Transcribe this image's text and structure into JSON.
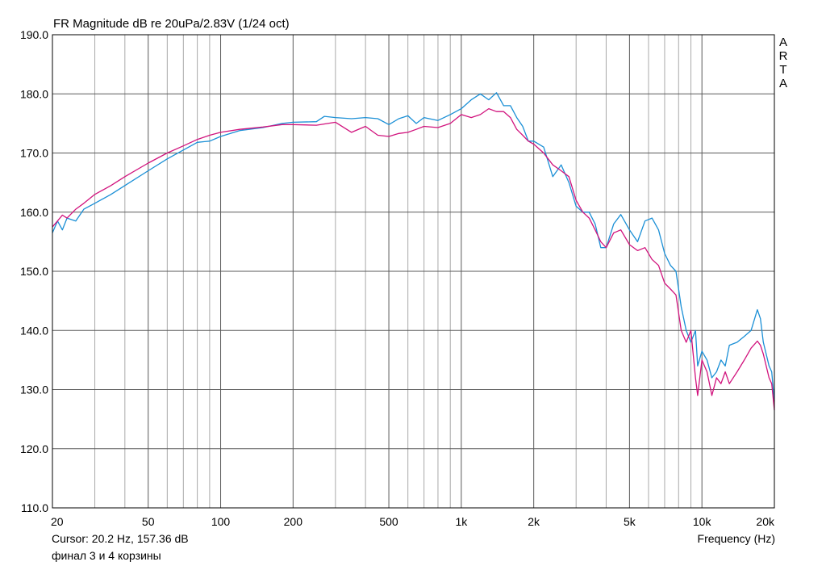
{
  "chart_data": {
    "type": "line",
    "title": "FR Magnitude dB re 20uPa/2.83V (1/24 oct)",
    "xlabel": "Frequency (Hz)",
    "ylabel": "",
    "x_scale": "log",
    "xlim": [
      20,
      20000
    ],
    "ylim": [
      110,
      190
    ],
    "grid": true,
    "y_ticks": [
      "110.0",
      "120.0",
      "130.0",
      "140.0",
      "150.0",
      "160.0",
      "170.0",
      "180.0",
      "190.0"
    ],
    "x_ticks": [
      {
        "value": 20,
        "label": "20"
      },
      {
        "value": 50,
        "label": "50"
      },
      {
        "value": 100,
        "label": "100"
      },
      {
        "value": 200,
        "label": "200"
      },
      {
        "value": 500,
        "label": "500"
      },
      {
        "value": 1000,
        "label": "1k"
      },
      {
        "value": 2000,
        "label": "2k"
      },
      {
        "value": 5000,
        "label": "5k"
      },
      {
        "value": 10000,
        "label": "10k"
      },
      {
        "value": 20000,
        "label": "20k"
      }
    ],
    "series": [
      {
        "color": "#1a8fd6",
        "points": [
          [
            20,
            156.5
          ],
          [
            21,
            158.5
          ],
          [
            22,
            157
          ],
          [
            23,
            159
          ],
          [
            25,
            158.5
          ],
          [
            27,
            160.5
          ],
          [
            30,
            161.5
          ],
          [
            35,
            163
          ],
          [
            40,
            164.5
          ],
          [
            50,
            167
          ],
          [
            60,
            169
          ],
          [
            70,
            170.5
          ],
          [
            80,
            171.8
          ],
          [
            90,
            172
          ],
          [
            100,
            172.8
          ],
          [
            120,
            173.8
          ],
          [
            150,
            174.3
          ],
          [
            180,
            175
          ],
          [
            200,
            175.2
          ],
          [
            250,
            175.3
          ],
          [
            270,
            176.2
          ],
          [
            300,
            176
          ],
          [
            350,
            175.8
          ],
          [
            400,
            176
          ],
          [
            450,
            175.8
          ],
          [
            500,
            174.8
          ],
          [
            550,
            175.8
          ],
          [
            600,
            176.3
          ],
          [
            650,
            175
          ],
          [
            700,
            176
          ],
          [
            800,
            175.5
          ],
          [
            900,
            176.5
          ],
          [
            1000,
            177.5
          ],
          [
            1100,
            179
          ],
          [
            1200,
            180
          ],
          [
            1300,
            179
          ],
          [
            1400,
            180.2
          ],
          [
            1500,
            178
          ],
          [
            1600,
            178
          ],
          [
            1700,
            176
          ],
          [
            1800,
            174.5
          ],
          [
            1900,
            172
          ],
          [
            2000,
            172
          ],
          [
            2200,
            171
          ],
          [
            2400,
            166
          ],
          [
            2600,
            168
          ],
          [
            2800,
            165
          ],
          [
            3000,
            161
          ],
          [
            3200,
            160
          ],
          [
            3400,
            160
          ],
          [
            3600,
            158
          ],
          [
            3800,
            154
          ],
          [
            4000,
            154
          ],
          [
            4300,
            158
          ],
          [
            4600,
            159.6
          ],
          [
            5000,
            157
          ],
          [
            5400,
            155
          ],
          [
            5800,
            158.5
          ],
          [
            6200,
            159
          ],
          [
            6600,
            157
          ],
          [
            7000,
            153
          ],
          [
            7400,
            151
          ],
          [
            7800,
            150
          ],
          [
            8200,
            144
          ],
          [
            8600,
            140
          ],
          [
            9000,
            138
          ],
          [
            9400,
            140
          ],
          [
            9600,
            134
          ],
          [
            10000,
            136.5
          ],
          [
            10500,
            135
          ],
          [
            11000,
            132
          ],
          [
            11500,
            133
          ],
          [
            12000,
            135
          ],
          [
            12500,
            134
          ],
          [
            13000,
            137.5
          ],
          [
            14000,
            138
          ],
          [
            15000,
            139
          ],
          [
            16000,
            140
          ],
          [
            17000,
            143.5
          ],
          [
            17500,
            142
          ],
          [
            18000,
            138
          ],
          [
            19000,
            134
          ],
          [
            19500,
            133
          ],
          [
            20000,
            128
          ]
        ]
      },
      {
        "color": "#d1137d",
        "points": [
          [
            20,
            157.5
          ],
          [
            21,
            158.5
          ],
          [
            22,
            159.5
          ],
          [
            23,
            159
          ],
          [
            25,
            160.5
          ],
          [
            27,
            161.5
          ],
          [
            30,
            163
          ],
          [
            35,
            164.5
          ],
          [
            40,
            166
          ],
          [
            50,
            168.3
          ],
          [
            60,
            170
          ],
          [
            70,
            171.2
          ],
          [
            80,
            172.3
          ],
          [
            90,
            173
          ],
          [
            100,
            173.5
          ],
          [
            120,
            174
          ],
          [
            150,
            174.4
          ],
          [
            180,
            174.8
          ],
          [
            200,
            174.8
          ],
          [
            250,
            174.7
          ],
          [
            300,
            175.2
          ],
          [
            350,
            173.5
          ],
          [
            400,
            174.5
          ],
          [
            450,
            173
          ],
          [
            500,
            172.8
          ],
          [
            550,
            173.3
          ],
          [
            600,
            173.5
          ],
          [
            650,
            174
          ],
          [
            700,
            174.5
          ],
          [
            800,
            174.3
          ],
          [
            900,
            175
          ],
          [
            1000,
            176.5
          ],
          [
            1100,
            176
          ],
          [
            1200,
            176.5
          ],
          [
            1300,
            177.5
          ],
          [
            1400,
            177
          ],
          [
            1500,
            177
          ],
          [
            1600,
            176
          ],
          [
            1700,
            174
          ],
          [
            1800,
            173
          ],
          [
            1900,
            172
          ],
          [
            2000,
            171.5
          ],
          [
            2200,
            170
          ],
          [
            2400,
            168
          ],
          [
            2600,
            167
          ],
          [
            2800,
            166
          ],
          [
            3000,
            162
          ],
          [
            3200,
            160
          ],
          [
            3400,
            159
          ],
          [
            3600,
            157
          ],
          [
            3800,
            155
          ],
          [
            4000,
            154
          ],
          [
            4300,
            156.5
          ],
          [
            4600,
            157
          ],
          [
            5000,
            154.5
          ],
          [
            5400,
            153.5
          ],
          [
            5800,
            154
          ],
          [
            6200,
            152
          ],
          [
            6600,
            151
          ],
          [
            7000,
            148
          ],
          [
            7400,
            147
          ],
          [
            7800,
            146
          ],
          [
            8200,
            140
          ],
          [
            8600,
            138
          ],
          [
            9000,
            140
          ],
          [
            9400,
            132
          ],
          [
            9600,
            129
          ],
          [
            10000,
            135
          ],
          [
            10500,
            133
          ],
          [
            11000,
            129
          ],
          [
            11500,
            132
          ],
          [
            12000,
            131
          ],
          [
            12500,
            133
          ],
          [
            13000,
            131
          ],
          [
            14000,
            133
          ],
          [
            15000,
            135
          ],
          [
            16000,
            137
          ],
          [
            17000,
            138.2
          ],
          [
            17500,
            137.5
          ],
          [
            18000,
            136
          ],
          [
            19000,
            132
          ],
          [
            19500,
            131
          ],
          [
            20000,
            126.5
          ]
        ]
      }
    ]
  },
  "cursor_readout": "Cursor: 20.2 Hz, 157.36 dB",
  "note": "финал 3 и 4 корзины",
  "watermark": [
    "A",
    "R",
    "T",
    "A"
  ]
}
